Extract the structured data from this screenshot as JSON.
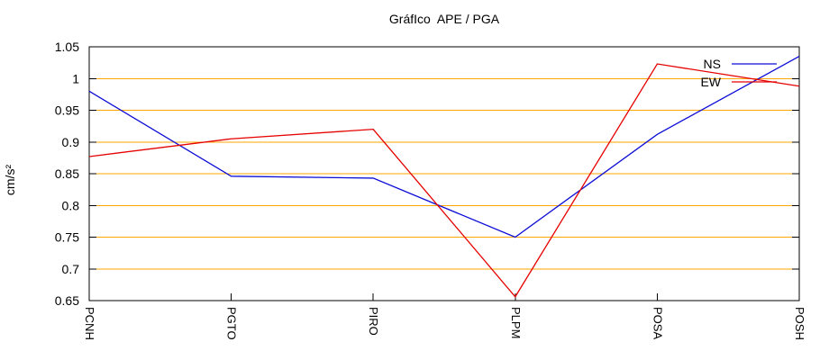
{
  "chart_data": {
    "type": "line",
    "title": "GráfIco  APE / PGA",
    "ylabel": "cm/s²",
    "categories": [
      "PCNH",
      "PGTO",
      "PIRO",
      "PLPM",
      "POSA",
      "POSH"
    ],
    "series": [
      {
        "name": "NS",
        "color": "#0d0dd6",
        "values": [
          0.98,
          0.846,
          0.843,
          0.75,
          0.912,
          1.035
        ]
      },
      {
        "name": "EW",
        "color": "#e60000",
        "values": [
          0.877,
          0.905,
          0.92,
          0.656,
          1.023,
          0.988
        ]
      }
    ],
    "ylim": [
      0.65,
      1.05
    ],
    "ytick_labels": [
      "1.05",
      "1",
      "0.95",
      "0.9",
      "0.85",
      "0.8",
      "0.75",
      "0.7",
      "0.65"
    ],
    "ytick_values": [
      1.05,
      1.0,
      0.95,
      0.9,
      0.85,
      0.8,
      0.75,
      0.7,
      0.65
    ],
    "grid": {
      "color": "#ffa500",
      "lines": [
        1.0,
        0.95,
        0.9,
        0.85,
        0.8,
        0.75,
        0.7
      ]
    },
    "axis_color": "#000000",
    "legend_position": "top-right"
  }
}
